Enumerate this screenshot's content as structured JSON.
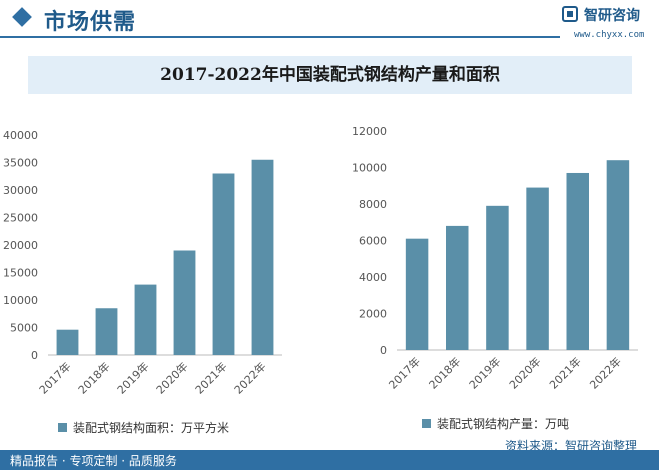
{
  "header": {
    "section_title": "市场供需",
    "brand_name": "智研咨询",
    "brand_url": "www.chyxx.com"
  },
  "title": "2017-2022年中国装配式钢结构产量和面积",
  "footer": {
    "left_text": "精品报告 · 专项定制 · 品质服务",
    "source": "资料来源：智研咨询整理"
  },
  "colors": {
    "bar": "#5a8fa8",
    "accent": "#2f6fa3"
  },
  "chart_data": [
    {
      "type": "bar",
      "categories": [
        "2017年",
        "2018年",
        "2019年",
        "2020年",
        "2021年",
        "2022年"
      ],
      "values": [
        4600,
        8500,
        12800,
        19000,
        33000,
        35500
      ],
      "legend": "装配式钢结构面积：万平方米",
      "ylim": [
        0,
        40000
      ],
      "yticks": [
        0,
        5000,
        10000,
        15000,
        20000,
        25000,
        30000,
        35000,
        40000
      ],
      "grid": false
    },
    {
      "type": "bar",
      "categories": [
        "2017年",
        "2018年",
        "2019年",
        "2020年",
        "2021年",
        "2022年"
      ],
      "values": [
        6100,
        6800,
        7900,
        8900,
        9700,
        10400
      ],
      "legend": "装配式钢结构产量：万吨",
      "ylim": [
        0,
        12000
      ],
      "yticks": [
        0,
        2000,
        4000,
        6000,
        8000,
        10000,
        12000
      ],
      "grid": false
    }
  ]
}
